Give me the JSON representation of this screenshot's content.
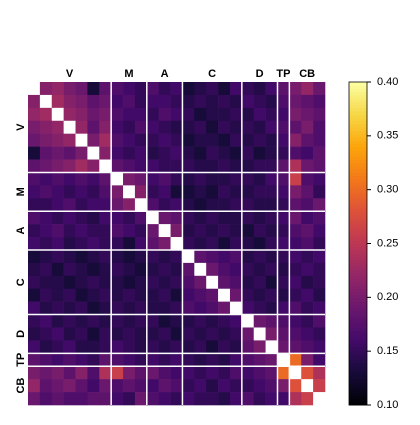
{
  "chart_data": {
    "type": "heatmap",
    "groups": [
      {
        "name": "V",
        "size": 7
      },
      {
        "name": "M",
        "size": 3
      },
      {
        "name": "A",
        "size": 3
      },
      {
        "name": "C",
        "size": 5
      },
      {
        "name": "D",
        "size": 3
      },
      {
        "name": "TP",
        "size": 1
      },
      {
        "name": "CB",
        "size": 3
      }
    ],
    "values": [
      [
        1,
        0.21,
        0.22,
        0.2,
        0.19,
        0.13,
        0.18,
        0.17,
        0.16,
        0.15,
        0.17,
        0.15,
        0.16,
        0.13,
        0.14,
        0.15,
        0.13,
        0.16,
        0.15,
        0.14,
        0.16,
        0.18,
        0.2,
        0.22,
        0.19
      ],
      [
        0.21,
        1,
        0.23,
        0.21,
        0.2,
        0.18,
        0.19,
        0.16,
        0.17,
        0.15,
        0.16,
        0.16,
        0.15,
        0.14,
        0.15,
        0.14,
        0.15,
        0.14,
        0.16,
        0.15,
        0.14,
        0.17,
        0.19,
        0.18,
        0.17
      ],
      [
        0.22,
        0.23,
        1,
        0.22,
        0.21,
        0.19,
        0.2,
        0.17,
        0.16,
        0.16,
        0.15,
        0.17,
        0.16,
        0.15,
        0.13,
        0.14,
        0.14,
        0.15,
        0.14,
        0.16,
        0.15,
        0.16,
        0.2,
        0.19,
        0.18
      ],
      [
        0.2,
        0.21,
        0.22,
        1,
        0.22,
        0.18,
        0.21,
        0.16,
        0.15,
        0.17,
        0.16,
        0.15,
        0.14,
        0.14,
        0.15,
        0.13,
        0.15,
        0.14,
        0.15,
        0.14,
        0.16,
        0.17,
        0.18,
        0.2,
        0.17
      ],
      [
        0.19,
        0.2,
        0.21,
        0.22,
        1,
        0.2,
        0.23,
        0.17,
        0.16,
        0.15,
        0.15,
        0.16,
        0.15,
        0.13,
        0.14,
        0.14,
        0.13,
        0.15,
        0.14,
        0.15,
        0.14,
        0.16,
        0.21,
        0.18,
        0.17
      ],
      [
        0.13,
        0.18,
        0.19,
        0.18,
        0.2,
        1,
        0.21,
        0.16,
        0.15,
        0.16,
        0.14,
        0.15,
        0.16,
        0.14,
        0.13,
        0.15,
        0.14,
        0.13,
        0.15,
        0.13,
        0.14,
        0.15,
        0.17,
        0.16,
        0.18
      ],
      [
        0.18,
        0.19,
        0.2,
        0.21,
        0.23,
        0.21,
        1,
        0.18,
        0.17,
        0.16,
        0.16,
        0.15,
        0.15,
        0.15,
        0.14,
        0.14,
        0.15,
        0.14,
        0.14,
        0.15,
        0.15,
        0.18,
        0.24,
        0.19,
        0.18
      ],
      [
        0.17,
        0.16,
        0.17,
        0.16,
        0.17,
        0.16,
        0.18,
        1,
        0.2,
        0.19,
        0.16,
        0.17,
        0.15,
        0.14,
        0.15,
        0.14,
        0.14,
        0.15,
        0.15,
        0.14,
        0.16,
        0.17,
        0.26,
        0.17,
        0.16
      ],
      [
        0.16,
        0.17,
        0.16,
        0.15,
        0.16,
        0.15,
        0.17,
        0.2,
        1,
        0.21,
        0.15,
        0.16,
        0.13,
        0.13,
        0.14,
        0.13,
        0.15,
        0.14,
        0.14,
        0.15,
        0.15,
        0.16,
        0.2,
        0.18,
        0.15
      ],
      [
        0.15,
        0.15,
        0.16,
        0.17,
        0.15,
        0.16,
        0.16,
        0.19,
        0.21,
        1,
        0.17,
        0.15,
        0.16,
        0.14,
        0.13,
        0.14,
        0.14,
        0.15,
        0.15,
        0.14,
        0.14,
        0.15,
        0.18,
        0.17,
        0.19
      ],
      [
        0.17,
        0.16,
        0.15,
        0.16,
        0.15,
        0.14,
        0.16,
        0.16,
        0.15,
        0.17,
        1,
        0.19,
        0.18,
        0.15,
        0.14,
        0.15,
        0.14,
        0.14,
        0.15,
        0.14,
        0.15,
        0.16,
        0.19,
        0.16,
        0.17
      ],
      [
        0.15,
        0.16,
        0.17,
        0.15,
        0.16,
        0.15,
        0.15,
        0.17,
        0.16,
        0.15,
        0.19,
        1,
        0.2,
        0.14,
        0.15,
        0.14,
        0.15,
        0.14,
        0.13,
        0.15,
        0.14,
        0.15,
        0.17,
        0.18,
        0.16
      ],
      [
        0.16,
        0.15,
        0.16,
        0.14,
        0.15,
        0.16,
        0.15,
        0.15,
        0.13,
        0.16,
        0.18,
        0.2,
        1,
        0.15,
        0.14,
        0.15,
        0.13,
        0.15,
        0.14,
        0.13,
        0.15,
        0.16,
        0.16,
        0.17,
        0.15
      ],
      [
        0.13,
        0.14,
        0.15,
        0.14,
        0.13,
        0.14,
        0.15,
        0.14,
        0.13,
        0.14,
        0.15,
        0.14,
        0.15,
        1,
        0.18,
        0.17,
        0.16,
        0.17,
        0.14,
        0.15,
        0.14,
        0.15,
        0.16,
        0.15,
        0.16
      ],
      [
        0.14,
        0.15,
        0.13,
        0.15,
        0.14,
        0.13,
        0.14,
        0.15,
        0.14,
        0.13,
        0.14,
        0.15,
        0.14,
        0.18,
        1,
        0.19,
        0.17,
        0.16,
        0.15,
        0.14,
        0.15,
        0.14,
        0.15,
        0.16,
        0.15
      ],
      [
        0.15,
        0.14,
        0.14,
        0.13,
        0.14,
        0.15,
        0.14,
        0.14,
        0.13,
        0.14,
        0.15,
        0.14,
        0.15,
        0.17,
        0.19,
        1,
        0.18,
        0.17,
        0.14,
        0.15,
        0.13,
        0.15,
        0.16,
        0.14,
        0.15
      ],
      [
        0.13,
        0.15,
        0.14,
        0.15,
        0.13,
        0.14,
        0.15,
        0.14,
        0.15,
        0.14,
        0.14,
        0.15,
        0.13,
        0.16,
        0.17,
        0.18,
        1,
        0.19,
        0.15,
        0.14,
        0.15,
        0.14,
        0.15,
        0.16,
        0.14
      ],
      [
        0.16,
        0.14,
        0.15,
        0.14,
        0.15,
        0.13,
        0.14,
        0.15,
        0.14,
        0.15,
        0.14,
        0.14,
        0.15,
        0.17,
        0.16,
        0.17,
        0.19,
        1,
        0.16,
        0.15,
        0.14,
        0.16,
        0.17,
        0.15,
        0.16
      ],
      [
        0.15,
        0.16,
        0.14,
        0.15,
        0.14,
        0.15,
        0.14,
        0.15,
        0.14,
        0.15,
        0.15,
        0.13,
        0.14,
        0.14,
        0.15,
        0.14,
        0.15,
        0.16,
        1,
        0.19,
        0.18,
        0.17,
        0.16,
        0.15,
        0.17
      ],
      [
        0.14,
        0.15,
        0.16,
        0.14,
        0.15,
        0.13,
        0.15,
        0.14,
        0.15,
        0.14,
        0.14,
        0.15,
        0.13,
        0.15,
        0.14,
        0.15,
        0.14,
        0.15,
        0.19,
        1,
        0.2,
        0.18,
        0.17,
        0.16,
        0.15
      ],
      [
        0.16,
        0.14,
        0.15,
        0.16,
        0.14,
        0.14,
        0.15,
        0.16,
        0.15,
        0.14,
        0.15,
        0.14,
        0.15,
        0.14,
        0.15,
        0.13,
        0.15,
        0.14,
        0.18,
        0.2,
        1,
        0.19,
        0.18,
        0.17,
        0.16
      ],
      [
        0.18,
        0.17,
        0.16,
        0.17,
        0.16,
        0.15,
        0.18,
        0.17,
        0.16,
        0.15,
        0.16,
        0.15,
        0.16,
        0.15,
        0.14,
        0.15,
        0.14,
        0.16,
        0.17,
        0.18,
        0.19,
        1,
        0.3,
        0.2,
        0.16
      ],
      [
        0.2,
        0.19,
        0.2,
        0.18,
        0.21,
        0.17,
        0.24,
        0.26,
        0.2,
        0.18,
        0.19,
        0.17,
        0.16,
        0.16,
        0.15,
        0.16,
        0.15,
        0.17,
        0.16,
        0.17,
        0.18,
        0.3,
        1,
        0.28,
        0.24
      ],
      [
        0.22,
        0.18,
        0.19,
        0.2,
        0.18,
        0.16,
        0.19,
        0.17,
        0.18,
        0.17,
        0.16,
        0.18,
        0.17,
        0.15,
        0.16,
        0.14,
        0.16,
        0.15,
        0.15,
        0.16,
        0.17,
        0.2,
        0.28,
        1,
        0.26
      ],
      [
        0.19,
        0.17,
        0.18,
        0.17,
        0.17,
        0.18,
        0.18,
        0.16,
        0.15,
        0.19,
        0.17,
        0.16,
        0.15,
        0.16,
        0.15,
        0.15,
        0.14,
        0.16,
        0.17,
        0.15,
        0.16,
        0.16,
        0.24,
        0.26,
        1
      ]
    ],
    "colorscale": "inferno",
    "clim": [
      0.1,
      0.4
    ],
    "cticks": [
      {
        "value": 0.1,
        "label": "0.10"
      },
      0.15,
      {
        "value": 0.2,
        "label": "0.20"
      },
      0.25,
      {
        "value": 0.3,
        "label": "0.30"
      },
      0.35,
      {
        "value": 0.4,
        "label": "0.40"
      }
    ]
  }
}
